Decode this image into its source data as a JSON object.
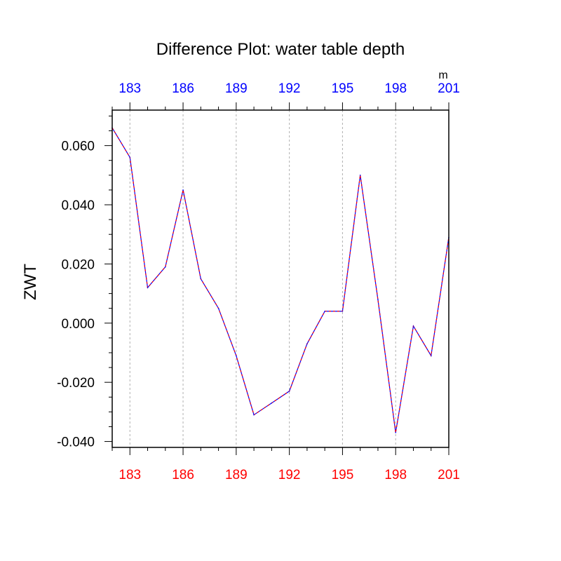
{
  "chart_data": {
    "type": "line",
    "title": "Difference Plot: water table depth",
    "ylabel": "ZWT",
    "top_axis_unit": "m",
    "x": [
      182,
      183,
      184,
      185,
      186,
      187,
      188,
      189,
      190,
      191,
      192,
      193,
      194,
      195,
      196,
      197,
      198,
      199,
      200,
      201
    ],
    "series": [
      {
        "values": [
          0.066,
          0.056,
          0.012,
          0.019,
          0.045,
          0.015,
          0.005,
          -0.011,
          -0.031,
          -0.027,
          -0.023,
          -0.007,
          0.004,
          0.004,
          0.05,
          0.008,
          -0.037,
          -0.001,
          -0.011,
          0.029
        ],
        "color": "#0000ff",
        "overlay_color": "#ff0000"
      }
    ],
    "xlim": [
      182,
      201
    ],
    "ylim": [
      -0.042,
      0.072
    ],
    "bottom_tick_labels": [
      "183",
      "186",
      "189",
      "192",
      "195",
      "198",
      "201"
    ],
    "top_tick_labels": [
      "183",
      "186",
      "189",
      "192",
      "195",
      "198",
      "201"
    ],
    "bottom_tick_values": [
      183,
      186,
      189,
      192,
      195,
      198,
      201
    ],
    "y_tick_labels": [
      "0.060",
      "0.040",
      "0.020",
      "0.000",
      "-0.020",
      "-0.040"
    ],
    "y_tick_values": [
      0.06,
      0.04,
      0.02,
      0.0,
      -0.02,
      -0.04
    ],
    "y_minor_step": 0.005,
    "x_minor_step": 1,
    "vertical_grid": true,
    "bottom_tick_color": "#ff0000",
    "top_tick_color": "#0000ff",
    "legend": "none"
  }
}
